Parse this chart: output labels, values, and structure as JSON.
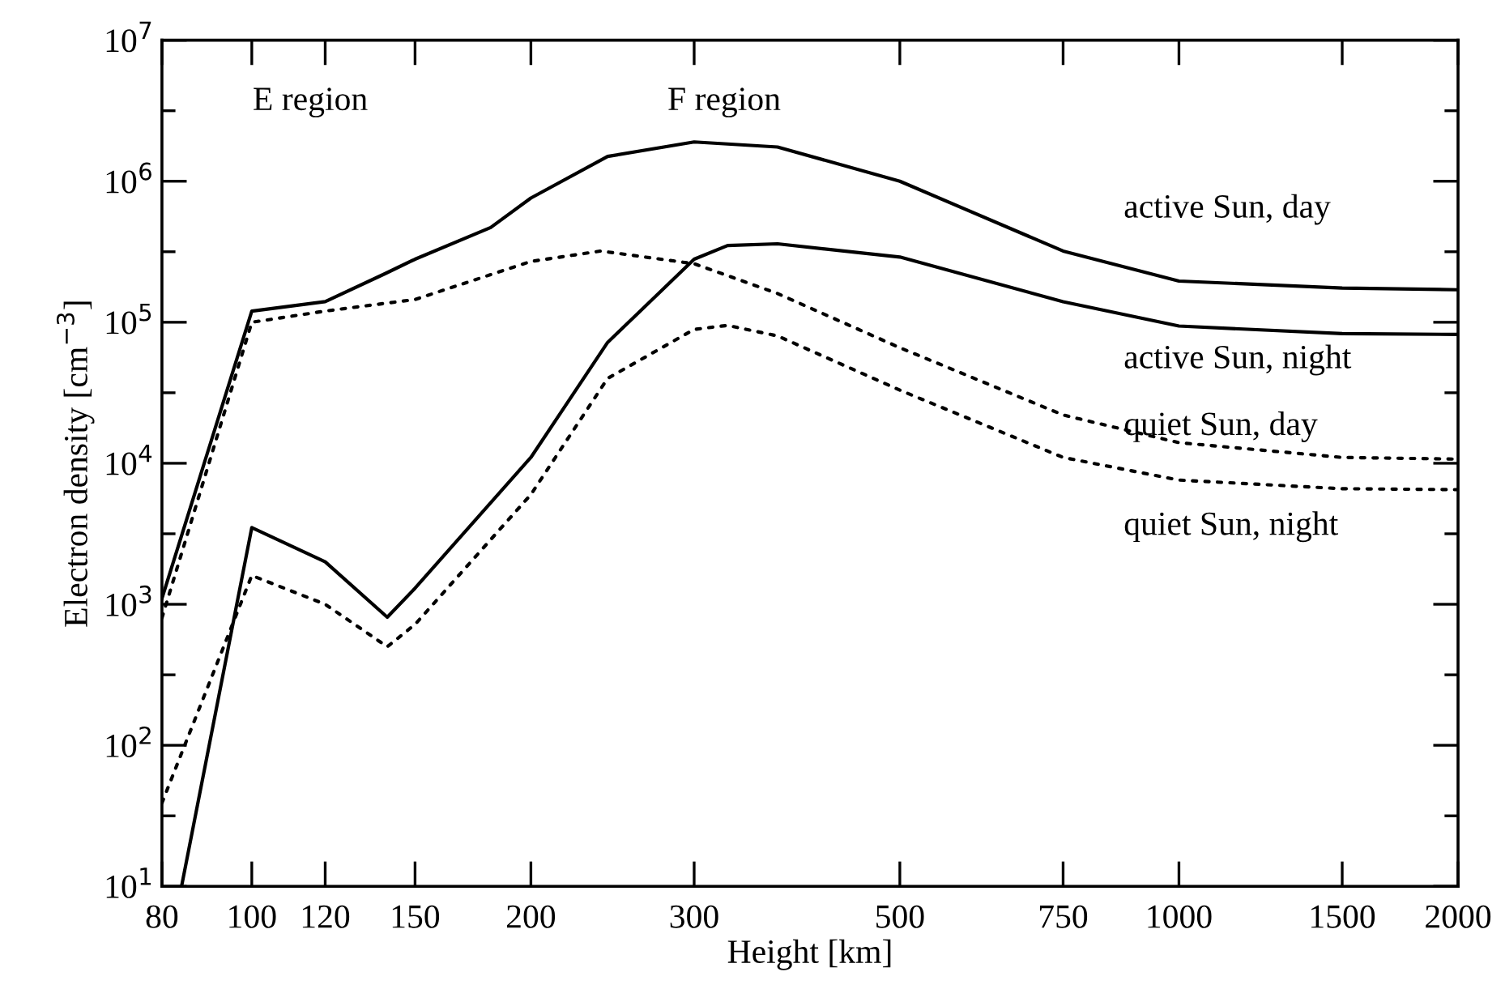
{
  "chart_data": {
    "type": "line",
    "xlabel": "Height [km]",
    "ylabel": "Electron density [cm$^{−3}$]",
    "log": "xy",
    "grid": false,
    "marker": "none",
    "xlim": [
      80,
      2000
    ],
    "xticks": [
      80,
      100,
      120,
      150,
      200,
      300,
      500,
      750,
      1000,
      1500,
      2000
    ],
    "ylim": [
      10,
      10000000
    ],
    "yticks": [
      {
        "value": 10,
        "label": "10$^{1}$"
      },
      {
        "value": 31.6,
        "label": null
      },
      {
        "value": 100,
        "label": "10$^{2}$"
      },
      {
        "value": 316,
        "label": null
      },
      {
        "value": 1000,
        "label": "10$^{3}$"
      },
      {
        "value": 3162,
        "label": null
      },
      {
        "value": 10000,
        "label": "10$^{4}$"
      },
      {
        "value": 31623,
        "label": null
      },
      {
        "value": 100000,
        "label": "10$^{5}$"
      },
      {
        "value": 316228,
        "label": null
      },
      {
        "value": 1000000,
        "label": "10$^{6}$"
      },
      {
        "value": 3162278,
        "label": null
      },
      {
        "value": 10000000,
        "label": "10$^{7}$"
      }
    ],
    "annotations": [
      "E region",
      "F region"
    ],
    "series": [
      {
        "name": "active Sun, day",
        "color": "#000000",
        "line_style": "solid",
        "x": [
          80,
          100,
          120,
          139,
          150,
          181,
          200,
          242,
          300,
          369,
          500,
          750,
          1000,
          1500,
          2000
        ],
        "values": [
          1100,
          120000,
          140000,
          220000,
          280000,
          470000,
          760000,
          1500000,
          1900000,
          1750000,
          1000000,
          320000,
          196000,
          175000,
          170000
        ]
      },
      {
        "name": "active Sun, night",
        "color": "#000000",
        "line_style": "solid",
        "x": [
          84,
          100,
          120,
          140,
          150,
          200,
          242,
          300,
          326,
          369,
          500,
          750,
          1000,
          1500,
          2000
        ],
        "values": [
          10,
          3500,
          2000,
          810,
          1300,
          11000,
          72000,
          280000,
          350000,
          360000,
          290000,
          140000,
          94000,
          83000,
          82000
        ]
      },
      {
        "name": "quiet Sun, day",
        "color": "#000000",
        "line_style": "dotted",
        "x": [
          80,
          100,
          120,
          150,
          200,
          238,
          300,
          369,
          500,
          750,
          1000,
          1500,
          2000
        ],
        "values": [
          800,
          100000,
          120000,
          145000,
          270000,
          320000,
          260000,
          160000,
          66000,
          22000,
          14000,
          11000,
          10700
        ]
      },
      {
        "name": "quiet Sun, night",
        "color": "#000000",
        "line_style": "dotted",
        "x": [
          80,
          100,
          120,
          140,
          150,
          200,
          242,
          300,
          326,
          369,
          500,
          750,
          1000,
          1500,
          2000
        ],
        "values": [
          39,
          1600,
          1000,
          500,
          720,
          6000,
          40000,
          89000,
          95000,
          80000,
          33000,
          11000,
          7600,
          6600,
          6500
        ]
      }
    ]
  }
}
